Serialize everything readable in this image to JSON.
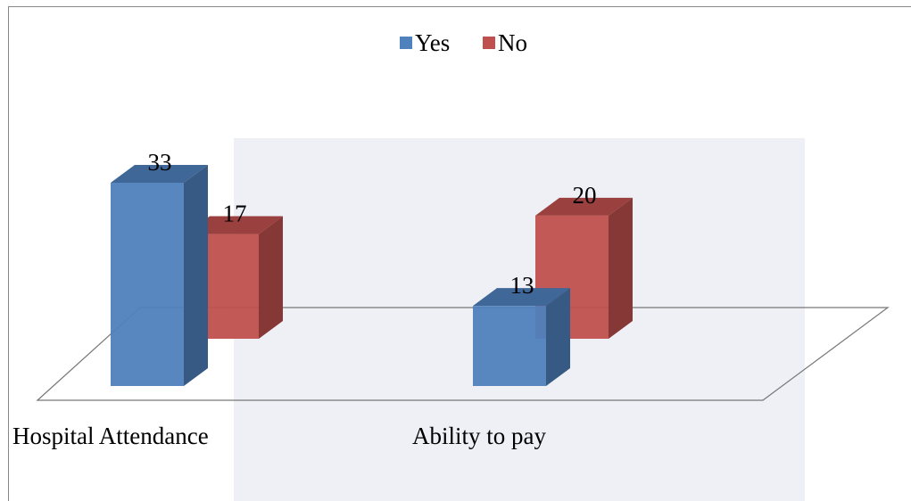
{
  "chart_data": {
    "type": "bar3d",
    "categories": [
      "Hospital Attendance",
      "Ability to pay"
    ],
    "series": [
      {
        "name": "Yes",
        "color": "#4f81bd",
        "values": [
          33,
          13
        ]
      },
      {
        "name": "No",
        "color": "#c0504d",
        "values": [
          17,
          20
        ]
      }
    ],
    "legend": "top"
  }
}
